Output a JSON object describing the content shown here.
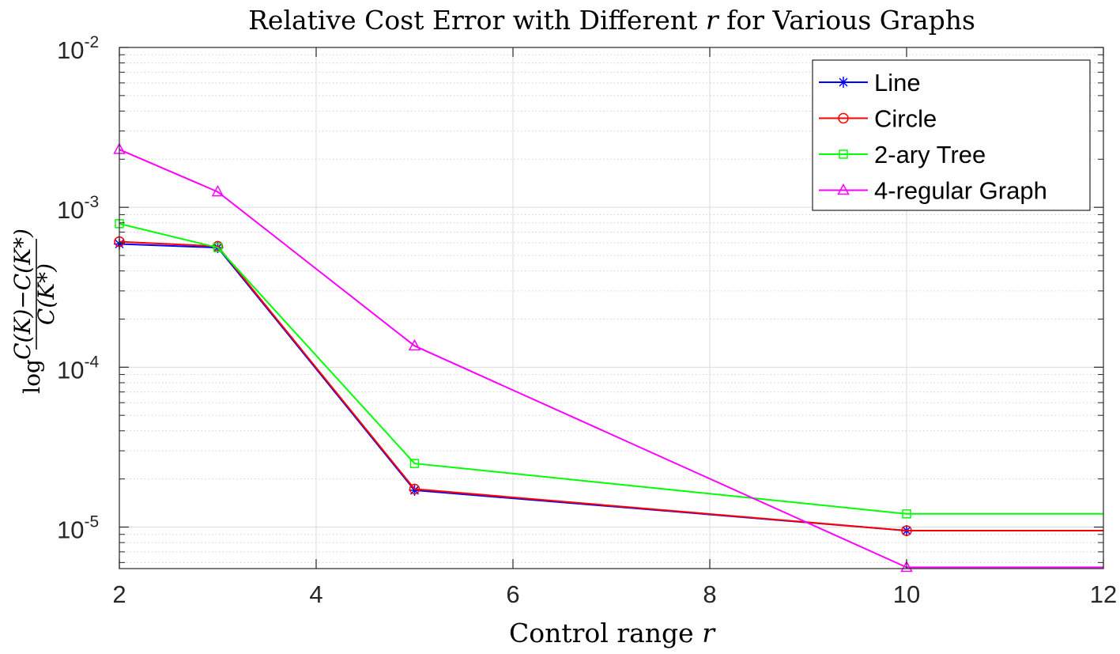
{
  "chart_data": {
    "type": "line",
    "title_prefix": "Relative Cost Error with Different ",
    "title_var": "r",
    "title_suffix": " for Various Graphs",
    "xlabel_prefix": "Control range ",
    "xlabel_var": "r",
    "ylabel_log": "log",
    "ylabel_num": "C(K)−C(K*)",
    "ylabel_den": "C(K*)",
    "x": [
      2,
      3,
      5,
      10,
      12
    ],
    "xlim": [
      2,
      12
    ],
    "xticks": [
      2,
      4,
      6,
      8,
      10,
      12
    ],
    "xtick_labels": [
      "2",
      "4",
      "6",
      "8",
      "10",
      "12"
    ],
    "yscale": "log",
    "ylim": [
      5.5e-06,
      0.01
    ],
    "yticks": [
      1e-05,
      0.0001,
      0.001,
      0.01
    ],
    "ytick_base": "10",
    "ytick_exponents": [
      "-5",
      "-4",
      "-3",
      "-2"
    ],
    "grid": true,
    "legend_position": "top-right",
    "series": [
      {
        "name": "Line",
        "color": "#0000ff",
        "marker": "asterisk",
        "values": [
          0.00059,
          0.00056,
          1.7e-05,
          9.5e-06,
          9.5e-06
        ]
      },
      {
        "name": "Circle",
        "color": "#ff0000",
        "marker": "circle",
        "values": [
          0.00061,
          0.00057,
          1.73e-05,
          9.5e-06,
          9.5e-06
        ]
      },
      {
        "name": "2-ary Tree",
        "color": "#00ff00",
        "marker": "square",
        "values": [
          0.00079,
          0.00056,
          2.5e-05,
          1.21e-05,
          1.21e-05
        ]
      },
      {
        "name": "4-regular Graph",
        "color": "#ff00ff",
        "marker": "triangle",
        "values": [
          0.0023,
          0.00125,
          0.000136,
          5.6e-06,
          5.6e-06
        ]
      }
    ]
  }
}
